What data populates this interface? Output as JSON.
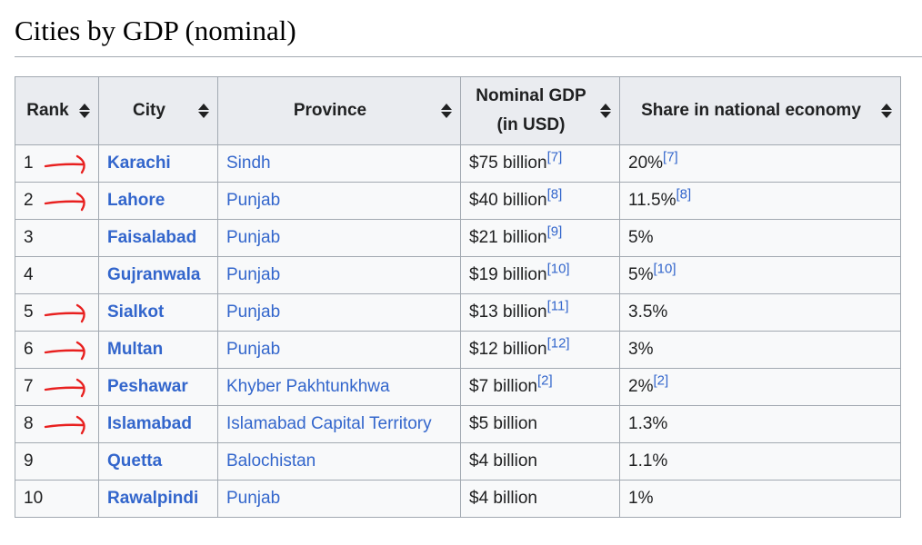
{
  "heading": "Cities by GDP (nominal)",
  "table": {
    "headers": {
      "rank": "Rank",
      "city": "City",
      "province": "Province",
      "gdp_line1": "Nominal GDP",
      "gdp_line2": "(in USD)",
      "share": "Share in national economy"
    },
    "rows": [
      {
        "rank": "1",
        "city": "Karachi",
        "province": "Sindh",
        "gdp": "$75 billion",
        "gdp_ref": "[7]",
        "share": "20%",
        "share_ref": "[7]",
        "arrow": true
      },
      {
        "rank": "2",
        "city": "Lahore",
        "province": "Punjab",
        "gdp": "$40 billion",
        "gdp_ref": "[8]",
        "share": "11.5%",
        "share_ref": "[8]",
        "arrow": true
      },
      {
        "rank": "3",
        "city": "Faisalabad",
        "province": "Punjab",
        "gdp": "$21 billion",
        "gdp_ref": "[9]",
        "share": "5%",
        "share_ref": "",
        "arrow": false
      },
      {
        "rank": "4",
        "city": "Gujranwala",
        "province": "Punjab",
        "gdp": "$19 billion",
        "gdp_ref": "[10]",
        "share": "5%",
        "share_ref": "[10]",
        "arrow": false
      },
      {
        "rank": "5",
        "city": "Sialkot",
        "province": "Punjab",
        "gdp": "$13 billion",
        "gdp_ref": "[11]",
        "share": "3.5%",
        "share_ref": "",
        "arrow": true
      },
      {
        "rank": "6",
        "city": "Multan",
        "province": "Punjab",
        "gdp": "$12 billion",
        "gdp_ref": "[12]",
        "share": "3%",
        "share_ref": "",
        "arrow": true
      },
      {
        "rank": "7",
        "city": "Peshawar",
        "province": "Khyber Pakhtunkhwa",
        "gdp": "$7 billion",
        "gdp_ref": "[2]",
        "share": "2%",
        "share_ref": "[2]",
        "arrow": true
      },
      {
        "rank": "8",
        "city": "Islamabad",
        "province": "Islamabad Capital Territory",
        "gdp": "$5 billion",
        "gdp_ref": "",
        "share": "1.3%",
        "share_ref": "",
        "arrow": true
      },
      {
        "rank": "9",
        "city": "Quetta",
        "province": "Balochistan",
        "gdp": "$4 billion",
        "gdp_ref": "",
        "share": "1.1%",
        "share_ref": "",
        "arrow": false
      },
      {
        "rank": "10",
        "city": "Rawalpindi",
        "province": "Punjab",
        "gdp": "$4 billion",
        "gdp_ref": "",
        "share": "1%",
        "share_ref": "",
        "arrow": false
      }
    ]
  },
  "colors": {
    "link": "#3366cc",
    "annotation_arrow": "#e8201f",
    "header_bg": "#eaecf0",
    "cell_bg": "#f8f9fa",
    "border": "#a2a9b1"
  }
}
